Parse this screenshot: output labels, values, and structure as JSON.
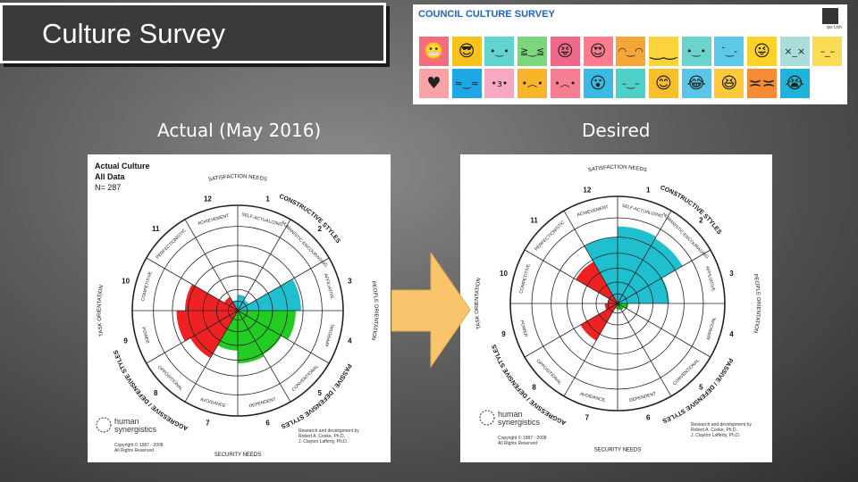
{
  "slide_title": "Culture Survey",
  "banner": {
    "title": "COUNCIL CULTURE SURVEY",
    "logo_text": "ips Uch",
    "emojis": [
      {
        "color": "#f56c7d",
        "glyph": "😬"
      },
      {
        "color": "#f7c21e",
        "glyph": "😎"
      },
      {
        "color": "#62d4d0",
        "glyph": "•‿•"
      },
      {
        "color": "#7bd67e",
        "glyph": "≧‿≦"
      },
      {
        "color": "#f0698b",
        "glyph": "😝"
      },
      {
        "color": "#ff7b8d",
        "glyph": "😍"
      },
      {
        "color": "#f4a638",
        "glyph": "◠‿◠"
      },
      {
        "color": "#fbd33b",
        "glyph": "‿‿"
      },
      {
        "color": "#6ad4cc",
        "glyph": "•‿•"
      },
      {
        "color": "#5ec8e8",
        "glyph": "˘‿-"
      },
      {
        "color": "#ffd12b",
        "glyph": "😜"
      },
      {
        "color": "#aaddd9",
        "glyph": "×_×"
      },
      {
        "color": "#fbdc55",
        "glyph": "–_–"
      },
      {
        "color": "#f9a3a8",
        "glyph": "♥"
      },
      {
        "color": "#1ea6e5",
        "glyph": "≈‿≈"
      },
      {
        "color": "#f6a9c0",
        "glyph": "•з•"
      },
      {
        "color": "#f9b52a",
        "glyph": "•︵•"
      },
      {
        "color": "#f57e91",
        "glyph": "•︵•"
      },
      {
        "color": "#3bbbe3",
        "glyph": "😮"
      },
      {
        "color": "#4ed0c8",
        "glyph": "–‿–"
      },
      {
        "color": "#f7c02a",
        "glyph": "😊"
      },
      {
        "color": "#59c6e9",
        "glyph": "😂"
      },
      {
        "color": "#fcc93a",
        "glyph": "😆"
      },
      {
        "color": "#f58b33",
        "glyph": "≍≍"
      },
      {
        "color": "#1fb4dc",
        "glyph": "😭"
      }
    ]
  },
  "actual": {
    "heading": "Actual (May 2016)",
    "legend": [
      "Actual Culture",
      "All Data",
      "N= 287"
    ]
  },
  "desired": {
    "heading": "Desired"
  },
  "circumplex": {
    "satisfaction": "SATISFACTION NEEDS",
    "security": "SECURITY NEEDS",
    "constructive": "CONSTRUCTIVE STYLES",
    "passive": "PASSIVE / DEFENSIVE STYLES",
    "aggressive": "AGGRESSIVE / DEFENSIVE STYLES",
    "people": "PEOPLE ORIENTATION",
    "task": "TASK ORIENTATION",
    "styles": [
      "SELF-ACTUALIZING",
      "HUMANISTIC-ENCOURAGING",
      "AFFILIATIVE",
      "APPROVAL",
      "CONVENTIONAL",
      "DEPENDENT",
      "AVOIDANCE",
      "OPPOSITIONAL",
      "POWER",
      "COMPETITIVE",
      "PERFECTIONISTIC",
      "ACHIEVEMENT"
    ],
    "numbers": [
      "1",
      "2",
      "3",
      "4",
      "5",
      "6",
      "7",
      "8",
      "9",
      "10",
      "11",
      "12"
    ],
    "brand1": "human",
    "brand2": "synergistics",
    "copyright1": "Copyright © 1987 - 2008",
    "copyright2": "All Rights Reserved",
    "research1": "Research and development by",
    "research2": "Robert A. Cooke, Ph.D.",
    "research3": "J. Clayton Lafferty, Ph.D."
  },
  "colors": {
    "constructive": "#1fbfcf",
    "passive": "#22cc22",
    "aggressive": "#ee2222",
    "arrow": "#f9c46b"
  },
  "chart_data": [
    {
      "type": "polar-area",
      "name": "actual",
      "values": {
        "1": 15,
        "2": 12,
        "3": 60,
        "4": 55,
        "5": 48,
        "6": 50,
        "7": 38,
        "8": 52,
        "9": 58,
        "10": 50,
        "11": 15,
        "12": 10
      }
    },
    {
      "type": "polar-area",
      "name": "desired",
      "values": {
        "1": 72,
        "2": 70,
        "3": 48,
        "4": 10,
        "5": 7,
        "6": 6,
        "7": 5,
        "8": 40,
        "9": 12,
        "10": 9,
        "11": 45,
        "12": 62
      }
    }
  ]
}
